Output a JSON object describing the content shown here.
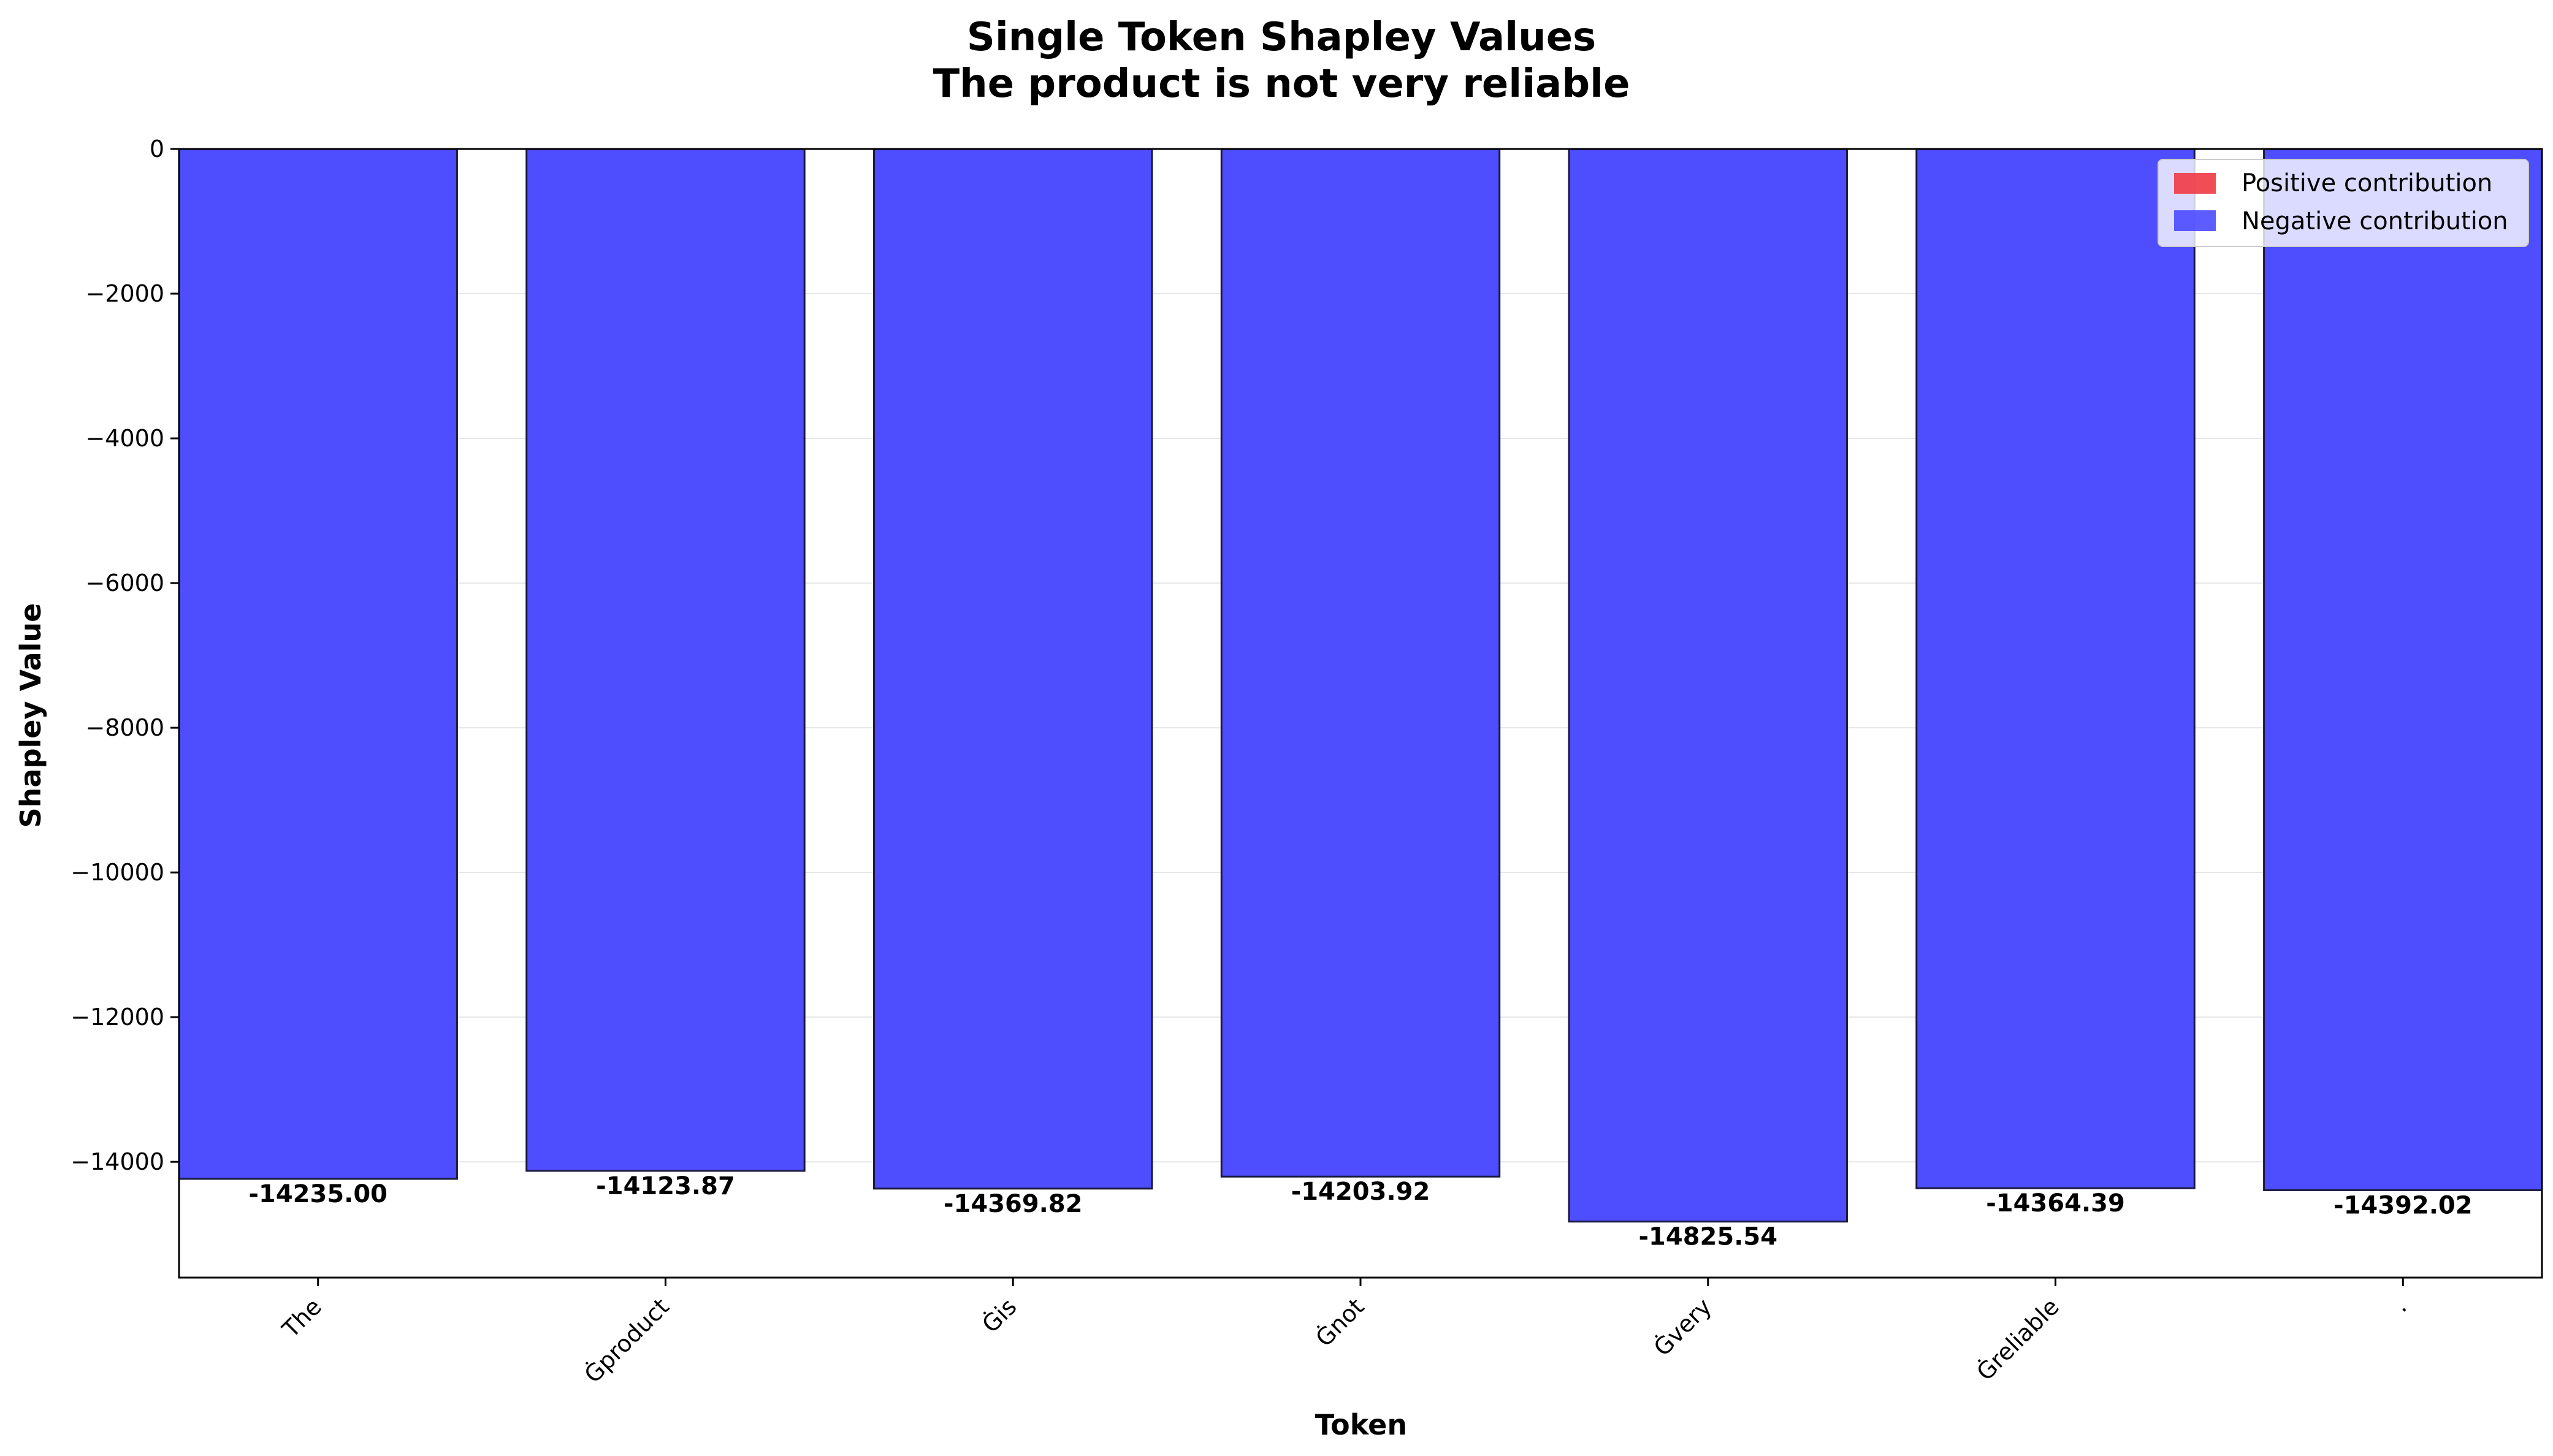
{
  "chart_data": {
    "type": "bar",
    "title": "Single Token Shapley Values",
    "subtitle": "The product is not very reliable",
    "xlabel": "Token",
    "ylabel": "Shapley Value",
    "categories": [
      "The",
      "Ġproduct",
      "Ġis",
      "Ġnot",
      "Ġvery",
      "Ġreliable",
      "."
    ],
    "values": [
      -14235.0,
      -14123.87,
      -14369.82,
      -14203.92,
      -14825.54,
      -14364.39,
      -14392.02
    ],
    "value_labels": [
      "-14235.00",
      "-14123.87",
      "-14369.82",
      "-14203.92",
      "-14825.54",
      "-14364.39",
      "-14392.02"
    ],
    "ylim": [
      -15600,
      0
    ],
    "yticks": [
      0,
      -2000,
      -4000,
      -6000,
      -8000,
      -10000,
      -12000,
      -14000
    ],
    "ytick_labels": [
      "0",
      "−2000",
      "−4000",
      "−6000",
      "−8000",
      "−10000",
      "−12000",
      "−14000"
    ],
    "grid": "horizontal",
    "legend_position": "top-right",
    "legend": [
      {
        "label": "Positive contribution",
        "color": "#f03a45"
      },
      {
        "label": "Negative contribution",
        "color": "#4a4aff"
      }
    ],
    "colors": {
      "positive": "#f03a45",
      "negative": "#4a4aff",
      "edge": "#1a1a40"
    }
  }
}
